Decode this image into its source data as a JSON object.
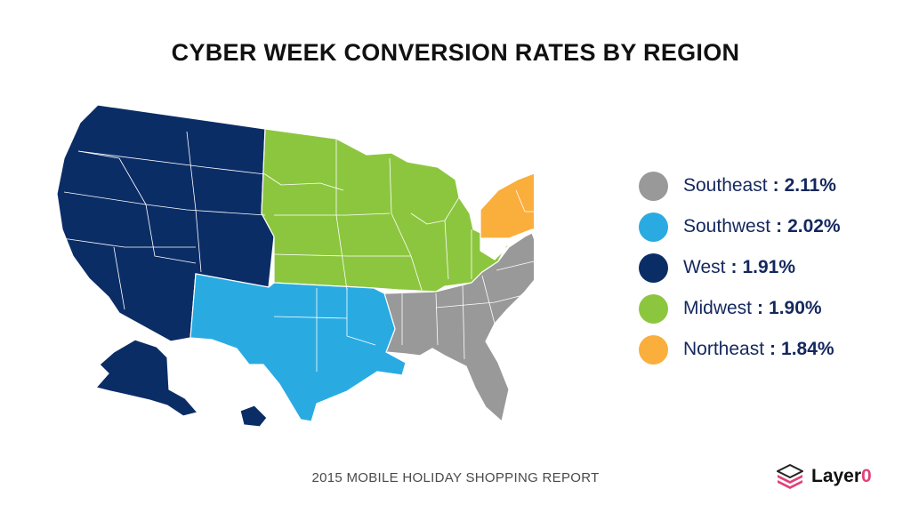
{
  "title": "CYBER WEEK CONVERSION RATES BY REGION",
  "colors": {
    "West": "#0b2d66",
    "Midwest": "#8cc63f",
    "Northeast": "#faae3c",
    "Southeast": "#999999",
    "Southwest": "#29abe2",
    "state_border": "#ffffff"
  },
  "legend": [
    {
      "region": "Southeast",
      "separator": ":",
      "value": "2.11%",
      "color": "#999999"
    },
    {
      "region": "Southwest",
      "separator": ":",
      "value": "2.02%",
      "color": "#29abe2"
    },
    {
      "region": "West",
      "separator": ":",
      "value": "1.91%",
      "color": "#0b2d66"
    },
    {
      "region": "Midwest",
      "separator": ":",
      "value": "1.90%",
      "color": "#8cc63f"
    },
    {
      "region": "Northeast",
      "separator": ":",
      "value": "1.84%",
      "color": "#faae3c"
    }
  ],
  "footer": "2015 MOBILE HOLIDAY SHOPPING REPORT",
  "logo": {
    "name": "Layer",
    "accent": "0",
    "icon": "stacked-layers-icon"
  }
}
